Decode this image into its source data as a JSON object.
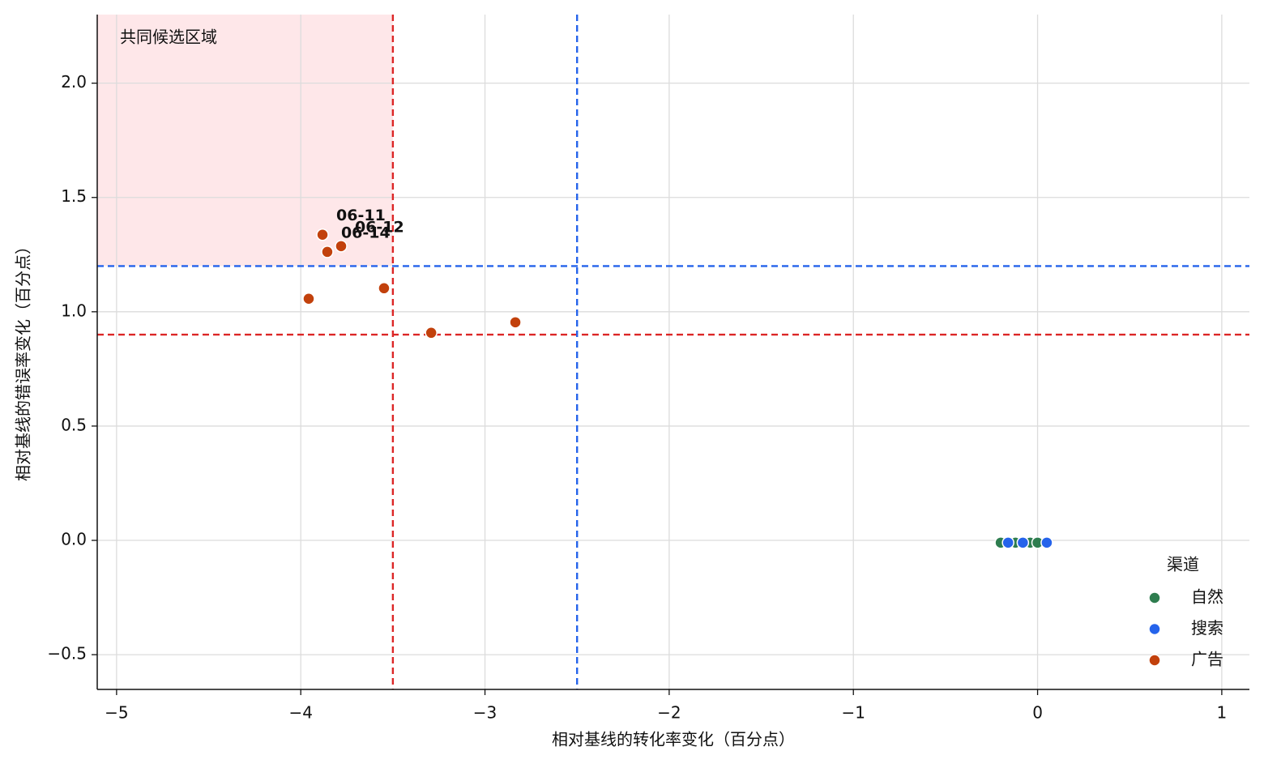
{
  "chart_data": {
    "type": "scatter",
    "x_label": "相对基线的转化率变化（百分点）",
    "y_label": "相对基线的错误率变化（百分点）",
    "xlim": [
      -5.105,
      1.15
    ],
    "ylim": [
      -0.652,
      2.3
    ],
    "xticks": [
      {
        "value": -5,
        "label": "−5"
      },
      {
        "value": -4,
        "label": "−4"
      },
      {
        "value": -3,
        "label": "−3"
      },
      {
        "value": -2,
        "label": "−2"
      },
      {
        "value": -1,
        "label": "−1"
      },
      0,
      1
    ],
    "yticks": [
      {
        "value": -0.5,
        "label": "−0.5"
      },
      {
        "value": 0,
        "label": "0.0"
      },
      {
        "value": 0.5,
        "label": "0.5"
      },
      {
        "value": 1,
        "label": "1.0"
      },
      {
        "value": 1.5,
        "label": "1.5"
      },
      {
        "value": 2,
        "label": "2.0"
      }
    ],
    "grid": true,
    "legend_title": "渠道",
    "legend_position": "lower right",
    "series": [
      {
        "name": "自然",
        "color": "#2e7d4f",
        "x": [
          -0.2,
          -0.12,
          -0.04,
          0.0
        ],
        "values": [
          -0.01,
          -0.01,
          -0.01,
          -0.01
        ]
      },
      {
        "name": "搜索",
        "color": "#2563eb",
        "x": [
          -0.16,
          -0.08,
          0.05
        ],
        "values": [
          -0.01,
          -0.01,
          -0.01
        ]
      },
      {
        "name": "广告",
        "color": "#c2410c",
        "x": [
          -3.882,
          -3.856,
          -3.781,
          -3.957,
          -3.548,
          -3.292,
          -2.835
        ],
        "values": [
          1.337,
          1.262,
          1.287,
          1.057,
          1.103,
          0.908,
          0.954
        ],
        "point_labels": [
          "06-11",
          "06-14",
          "06-12",
          null,
          null,
          null,
          null
        ],
        "label_color": "#7c2d12"
      }
    ],
    "reference_lines": [
      {
        "axis": "x",
        "value": -3.5,
        "color": "#dc2626"
      },
      {
        "axis": "y",
        "value": 0.9,
        "color": "#dc2626"
      },
      {
        "axis": "x",
        "value": -2.5,
        "color": "#2563eb"
      },
      {
        "axis": "y",
        "value": 1.2,
        "color": "#2563eb"
      }
    ],
    "highlight_region": {
      "xmax": -3.5,
      "ymin": 1.2,
      "color": "#fee7e9",
      "label": "共同候选区域",
      "label_color": "#9b1c1c"
    }
  }
}
